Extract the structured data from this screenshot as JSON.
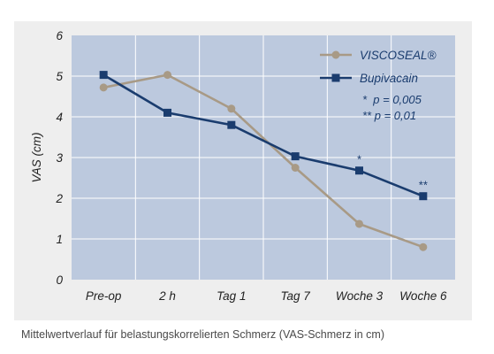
{
  "chart_data": {
    "type": "line",
    "categories": [
      "Pre-op",
      "2 h",
      "Tag 1",
      "Tag 7",
      "Woche 3",
      "Woche 6"
    ],
    "series": [
      {
        "name": "VISCOSEAL®",
        "color": "#a89a86",
        "marker": "circle",
        "values": [
          4.72,
          5.03,
          4.2,
          2.75,
          1.37,
          0.8
        ]
      },
      {
        "name": "Bupivacain",
        "color": "#1a3c6e",
        "marker": "square",
        "values": [
          5.03,
          4.1,
          3.8,
          3.03,
          2.68,
          2.05
        ]
      }
    ],
    "ylabel": "VAS (cm)",
    "xlabel": "",
    "ylim": [
      0,
      6
    ],
    "yticks": [
      0,
      1,
      2,
      3,
      4,
      5,
      6
    ],
    "grid": true,
    "legend_position": "top-right",
    "annotations": [
      {
        "category": "Woche 3",
        "series": "Bupivacain",
        "text": "*"
      },
      {
        "category": "Woche 6",
        "series": "Bupivacain",
        "text": "**"
      }
    ],
    "significance": [
      "*  p = 0,005",
      "** p = 0,01"
    ]
  },
  "caption": "Mittelwertverlauf für belastungskorrelierten Schmerz (VAS-Schmerz in cm)"
}
